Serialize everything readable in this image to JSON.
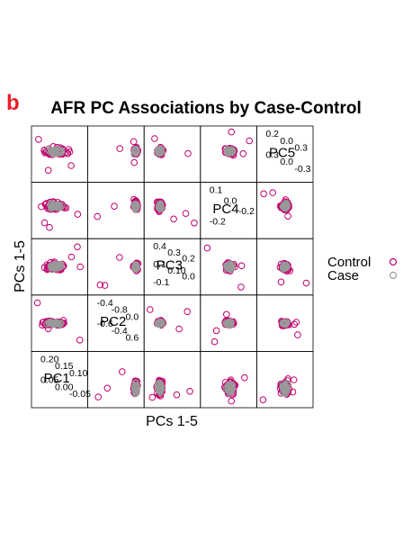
{
  "panel_label": "b",
  "chart_data": {
    "type": "scatter",
    "subtype": "scatterplot-matrix",
    "title": "AFR PC Associations by Case-Control",
    "xlabel": "PCs 1-5",
    "ylabel": "PCs 1-5",
    "variables": [
      "PC1",
      "PC2",
      "PC3",
      "PC4",
      "PC5"
    ],
    "series": [
      {
        "name": "Control",
        "color": "#c2006e",
        "marker": "open-circle"
      },
      {
        "name": "Case",
        "color": "#999999",
        "marker": "open-circle"
      }
    ],
    "legend_position": "right",
    "diagonal_ticks": {
      "PC5": [
        "0.2",
        "0.0",
        "0.3",
        "0.3",
        "0.0",
        "-0.3"
      ],
      "PC4": [
        "0.1",
        "0.0",
        "-0.2",
        "-0.2"
      ],
      "PC3": [
        "0.4",
        "0.3",
        "0.2",
        "0.1",
        "0.10",
        "0.0",
        "-0.1"
      ],
      "PC2": [
        "-0.4",
        "-0.8",
        "0.0",
        "-0.6",
        "-0.4",
        "0.6"
      ],
      "PC1": [
        "0.20",
        "0.15",
        "0.10",
        "0.05",
        "0.00",
        "-0.05"
      ]
    }
  }
}
